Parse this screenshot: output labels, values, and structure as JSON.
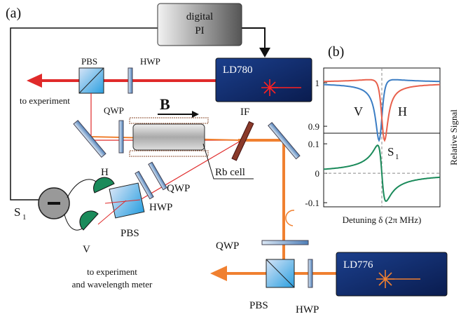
{
  "panels": {
    "a": "(a)",
    "b": "(b)"
  },
  "components": {
    "pi": [
      "digital",
      "PI"
    ],
    "ld780": "LD780",
    "ld776": "LD776",
    "pbs_top": "PBS",
    "hwp_top": "HWP",
    "qwp_top": "QWP",
    "field": "B",
    "if": "IF",
    "rb_cell": "Rb cell",
    "detector_h": "H",
    "detector_v": "V",
    "s1": {
      "main": "S",
      "sub": "1"
    },
    "qwp_mid": "QWP",
    "hwp_mid": "HWP",
    "pbs_mid": "PBS",
    "qwp_bottom": "QWP",
    "pbs_bottom": "PBS",
    "hwp_bottom": "HWP",
    "out_top": "to experiment",
    "out_bottom": [
      "to experiment",
      "and wavelength meter"
    ]
  },
  "inset": {
    "top": {
      "ylim": [
        0.884,
        1.034
      ],
      "yticks": [
        1,
        0.9
      ],
      "series": [
        {
          "name": "V",
          "color": "#3b7dc4"
        },
        {
          "name": "H",
          "color": "#e8604c"
        }
      ]
    },
    "bottom": {
      "ylim": [
        -0.114,
        0.136
      ],
      "yticks": [
        0.1,
        0,
        -0.1
      ],
      "color": "#1a8a5a",
      "label": {
        "main": "S",
        "sub": "1"
      }
    },
    "xlabel": "Detuning δ (2π MHz)",
    "ylabel": "Relative Signal"
  }
}
